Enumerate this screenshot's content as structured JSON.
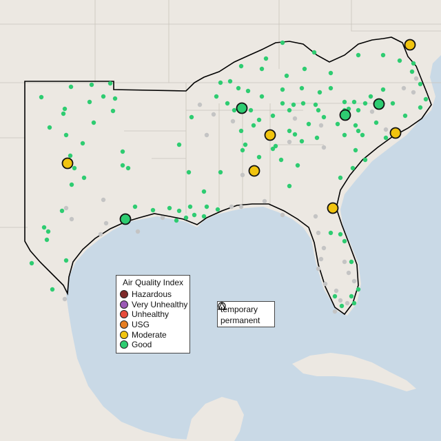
{
  "legend": {
    "title": "Air Quality Index",
    "categories": [
      {
        "label": "Hazardous",
        "color": "#7e2a2a"
      },
      {
        "label": "Very Unhealthy",
        "color": "#9b59b6"
      },
      {
        "label": "Unhealthy",
        "color": "#e74c3c"
      },
      {
        "label": "USG",
        "color": "#e67e22"
      },
      {
        "label": "Moderate",
        "color": "#f1c40f"
      },
      {
        "label": "Good",
        "color": "#2ecc71"
      }
    ]
  },
  "monitor_types": {
    "temporary": "temporary",
    "permanent": "permanent"
  },
  "colors": {
    "water": "#c9d9e6",
    "land": "#ece8e2",
    "region_outline": "#000000",
    "boundary": "#c8c3bc",
    "no_data": "#c4c4c4",
    "good": "#2ecc71",
    "moderate": "#f1c40f"
  }
}
